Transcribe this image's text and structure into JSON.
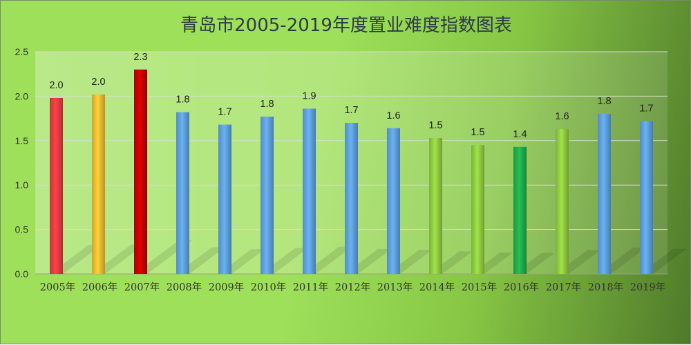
{
  "chart_data": {
    "type": "bar",
    "title": "青岛市2005-2019年度置业难度指数图表",
    "xlabel": "",
    "ylabel": "",
    "ylim": [
      0,
      2.5
    ],
    "yticks": [
      "0.0",
      "0.5",
      "1.0",
      "1.5",
      "2.0",
      "2.5"
    ],
    "categories": [
      "2005年",
      "2006年",
      "2007年",
      "2008年",
      "2009年",
      "2010年",
      "2011年",
      "2012年",
      "2013年",
      "2014年",
      "2015年",
      "2016年",
      "2017年",
      "2018年",
      "2019年"
    ],
    "values": [
      1.98,
      2.02,
      2.3,
      1.82,
      1.68,
      1.77,
      1.86,
      1.7,
      1.64,
      1.53,
      1.45,
      1.43,
      1.63,
      1.8,
      1.72
    ],
    "labels": [
      "2.0",
      "2.0",
      "2.3",
      "1.8",
      "1.7",
      "1.8",
      "1.9",
      "1.7",
      "1.6",
      "1.5",
      "1.5",
      "1.4",
      "1.6",
      "1.8",
      "1.7"
    ],
    "colors": [
      "#e0393e",
      "#e6b62e",
      "#c00000",
      "#5b9bd5",
      "#5b9bd5",
      "#5b9bd5",
      "#5b9bd5",
      "#5b9bd5",
      "#5b9bd5",
      "#8cc63f",
      "#8cc63f",
      "#1fa847",
      "#8cc63f",
      "#5b9bd5",
      "#5b9bd5"
    ],
    "grid": true,
    "legend": "none"
  }
}
